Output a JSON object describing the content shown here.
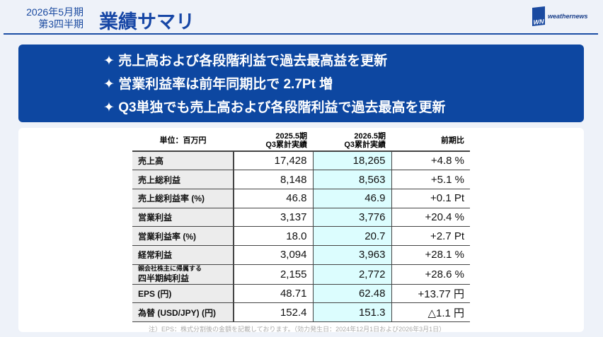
{
  "header": {
    "period_line1": "2026年5月期",
    "period_line2": "第3四半期",
    "title": "業績サマリ",
    "logo_mark": "WN",
    "logo_text": "weathernews",
    "accent": "#1a4aa0"
  },
  "highlights": [
    "✦ 売上高および各段階利益で過去最高益を更新",
    "✦ 営業利益率は前年同期比で 2.7Pt 増",
    "✦ Q3単独でも売上高および各段階利益で過去最高を更新"
  ],
  "table": {
    "unit": "単位：百万円",
    "col1": [
      "2025.5期",
      "Q3累計実績"
    ],
    "col2": [
      "2026.5期",
      "Q3累計実績"
    ],
    "col3": "前期比",
    "rows": [
      {
        "label": "売上高",
        "prev": "17,428",
        "curr": "18,265",
        "change": "+4.8 %"
      },
      {
        "label": "売上総利益",
        "prev": "8,148",
        "curr": "8,563",
        "change": "+5.1 %"
      },
      {
        "label": "売上総利益率 (%)",
        "prev": "46.8",
        "curr": "46.9",
        "change": "+0.1 Pt"
      },
      {
        "label": "営業利益",
        "prev": "3,137",
        "curr": "3,776",
        "change": "+20.4 %"
      },
      {
        "label": "営業利益率 (%)",
        "prev": "18.0",
        "curr": "20.7",
        "change": "+2.7 Pt"
      },
      {
        "label": "経常利益",
        "prev": "3,094",
        "curr": "3,963",
        "change": "+28.1 %"
      },
      {
        "label_small": "親会社株主に帰属する",
        "label": "四半期純利益",
        "prev": "2,155",
        "curr": "2,772",
        "change": "+28.6 %"
      },
      {
        "label": "EPS (円)",
        "prev": "48.71",
        "curr": "62.48",
        "change": "+13.77 円"
      },
      {
        "label": "為替 (USD/JPY) (円)",
        "prev": "152.4",
        "curr": "151.3",
        "change": "△1.1 円"
      }
    ]
  },
  "note": "注）EPS：株式分割後の金額を記載しております。（効力発生日：2024年12月1日および2026年3月1日）"
}
